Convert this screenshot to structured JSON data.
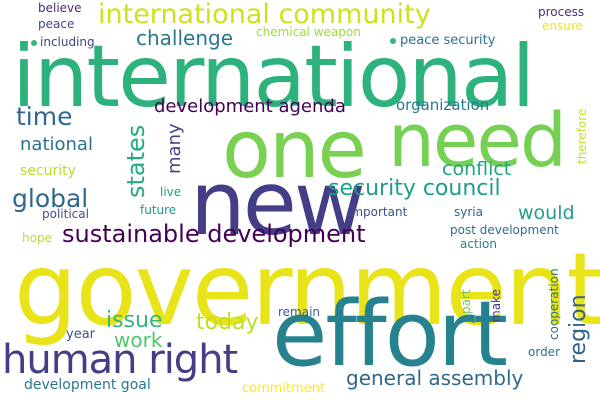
{
  "words": [
    {
      "text": "government",
      "color": "#e8e419"
    },
    {
      "text": "international",
      "color": "#2db27d"
    },
    {
      "text": "effort",
      "color": "#26828e"
    },
    {
      "text": "new",
      "color": "#433e85"
    },
    {
      "text": "one",
      "color": "#7ad151"
    },
    {
      "text": "need",
      "color": "#75d054"
    },
    {
      "text": "human right",
      "color": "#433e85"
    },
    {
      "text": "sustainable development",
      "color": "#440154"
    },
    {
      "text": "international community",
      "color": "#d0e11c"
    },
    {
      "text": "general assembly",
      "color": "#31688e"
    },
    {
      "text": "security council",
      "color": "#1f9e89"
    },
    {
      "text": "development agenda",
      "color": "#440154"
    },
    {
      "text": "global",
      "color": "#31688e"
    },
    {
      "text": "time",
      "color": "#31688e"
    },
    {
      "text": "today",
      "color": "#bddf26"
    },
    {
      "text": "issue",
      "color": "#35b779"
    },
    {
      "text": "work",
      "color": "#52c569"
    },
    {
      "text": "states",
      "color": "#25ab82"
    },
    {
      "text": "many",
      "color": "#3e4989"
    },
    {
      "text": "region",
      "color": "#33638d"
    },
    {
      "text": "challenge",
      "color": "#2a788e"
    },
    {
      "text": "national",
      "color": "#2c728e"
    },
    {
      "text": "conflict",
      "color": "#20a486"
    },
    {
      "text": "would",
      "color": "#1f9e89"
    },
    {
      "text": "organization",
      "color": "#2a788e"
    },
    {
      "text": "peace security",
      "color": "#2c728e"
    },
    {
      "text": "security",
      "color": "#b5de2b"
    },
    {
      "text": "year",
      "color": "#3b528b"
    },
    {
      "text": "development goal",
      "color": "#2a788e"
    },
    {
      "text": "commitment",
      "color": "#fde725"
    },
    {
      "text": "chemical weapon",
      "color": "#a2da37"
    },
    {
      "text": "including",
      "color": "#404688"
    },
    {
      "text": "believe",
      "color": "#472c7a"
    },
    {
      "text": "peace",
      "color": "#3e4989"
    },
    {
      "text": "process",
      "color": "#472f7d"
    },
    {
      "text": "ensure",
      "color": "#f1e51d"
    },
    {
      "text": "therefore",
      "color": "#c8e020"
    },
    {
      "text": "live",
      "color": "#1fa088"
    },
    {
      "text": "future",
      "color": "#1f9a8a"
    },
    {
      "text": "political",
      "color": "#3b528b"
    },
    {
      "text": "hope",
      "color": "#b5de2b"
    },
    {
      "text": "important",
      "color": "#3b528b"
    },
    {
      "text": "syria",
      "color": "#32658e"
    },
    {
      "text": "post development",
      "color": "#2f6c8e"
    },
    {
      "text": "action",
      "color": "#26828e"
    },
    {
      "text": "remain",
      "color": "#35608d"
    },
    {
      "text": "part",
      "color": "#6ccd5a"
    },
    {
      "text": "make",
      "color": "#453781"
    },
    {
      "text": "cooperation",
      "color": "#29798e"
    },
    {
      "text": "order",
      "color": "#2c728e"
    }
  ]
}
